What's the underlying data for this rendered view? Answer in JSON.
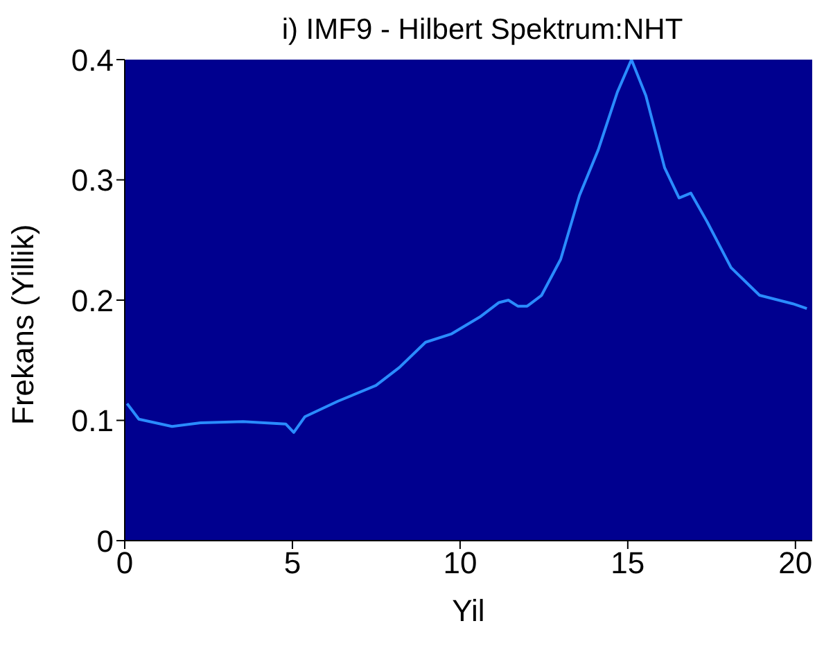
{
  "chart_data": {
    "type": "line",
    "title": "i) IMF9 - Hilbert Spektrum:NHT",
    "xlabel": "Yil",
    "ylabel": "Frekans (Yillik)",
    "x": [
      0.07,
      0.42,
      1.41,
      2.26,
      3.53,
      4.8,
      5.04,
      5.37,
      6.36,
      7.49,
      8.19,
      8.97,
      9.75,
      10.59,
      11.16,
      11.44,
      11.72,
      12.0,
      12.43,
      13.0,
      13.56,
      14.12,
      14.69,
      15.11,
      15.54,
      16.1,
      16.53,
      16.88,
      17.37,
      18.08,
      18.93,
      19.92,
      20.34
    ],
    "series": [
      {
        "color": "#2a8cff",
        "values": [
          0.114,
          0.101,
          0.095,
          0.098,
          0.099,
          0.097,
          0.09,
          0.103,
          0.116,
          0.129,
          0.144,
          0.165,
          0.172,
          0.186,
          0.198,
          0.2,
          0.195,
          0.195,
          0.204,
          0.234,
          0.287,
          0.325,
          0.373,
          0.4,
          0.37,
          0.31,
          0.285,
          0.289,
          0.265,
          0.227,
          0.204,
          0.197,
          0.193
        ]
      }
    ],
    "xlim": [
      0,
      20.5
    ],
    "xticks": [
      0,
      5,
      10,
      15,
      20
    ],
    "ylim": [
      0,
      0.4
    ],
    "yticks": [
      0,
      0.1,
      0.2,
      0.3,
      0.4
    ],
    "grid": false,
    "legend": false,
    "marker": "none",
    "line_style": "solid"
  }
}
